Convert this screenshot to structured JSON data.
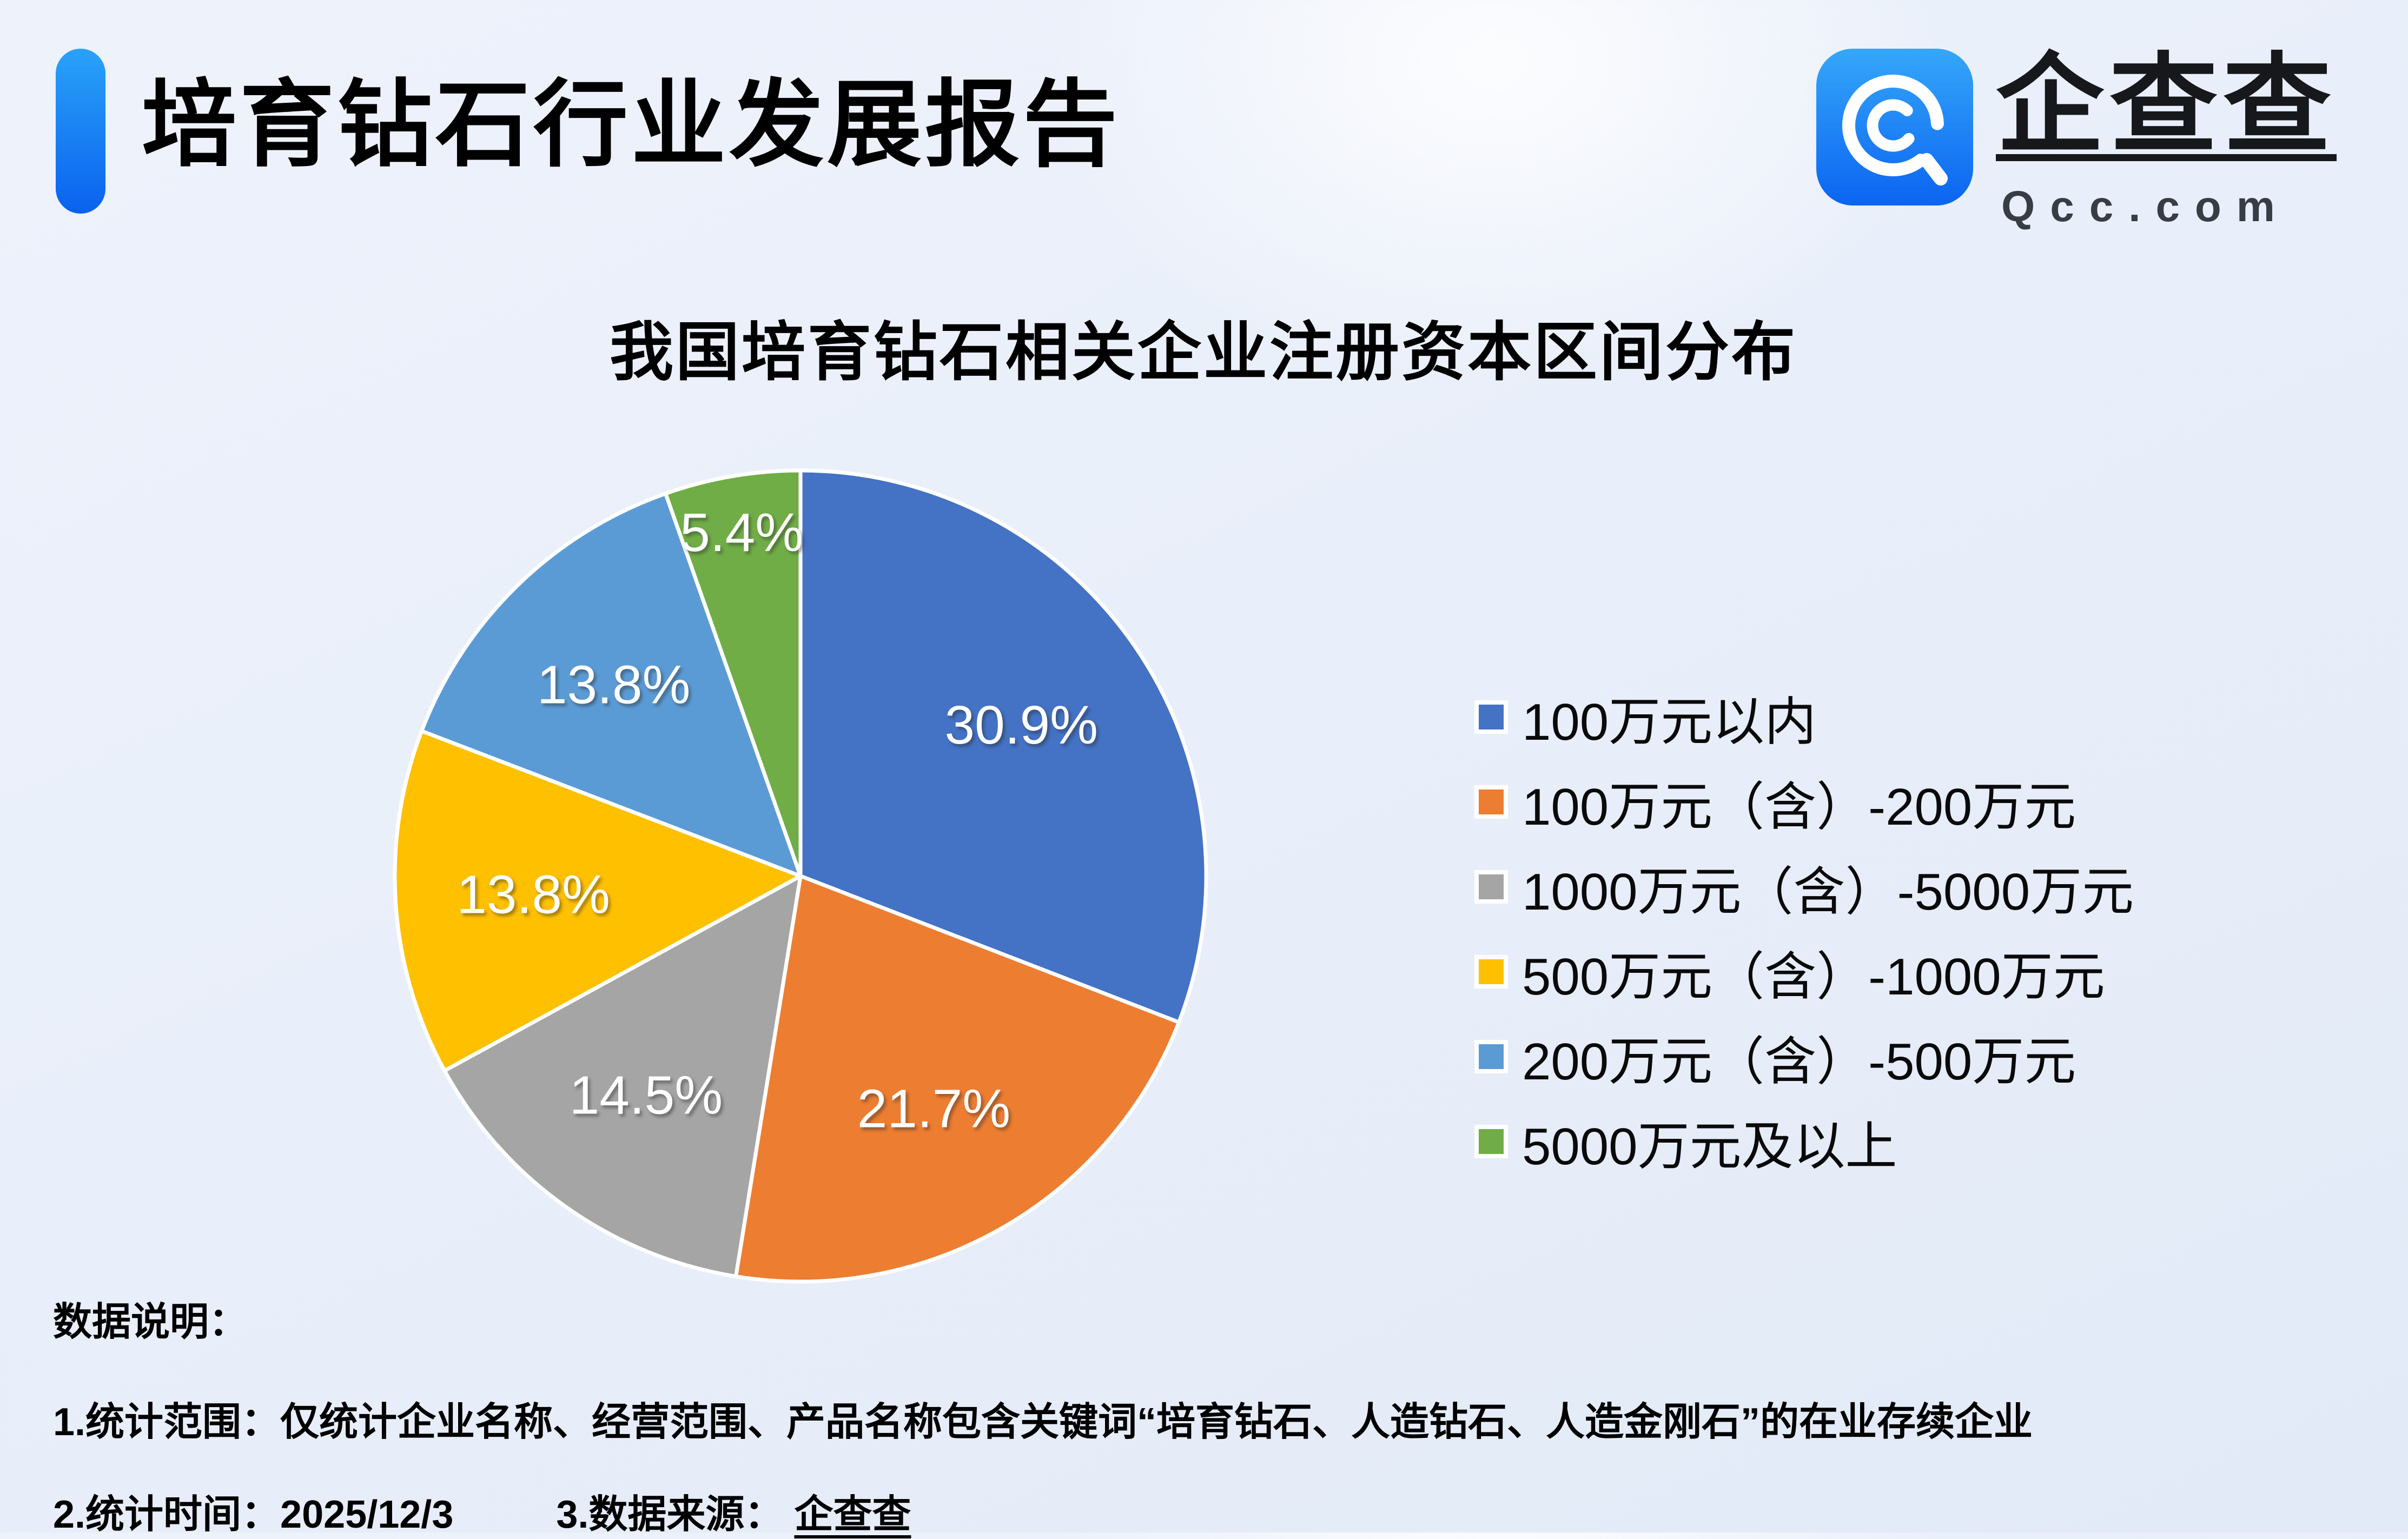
{
  "header": {
    "title": "培育钻石行业发展报告"
  },
  "logo": {
    "brand": "企查查",
    "domain": "Qcc.com",
    "icon": "qcc-logo-icon",
    "icon_gradient_top": "#35a7f9",
    "icon_gradient_bottom": "#0b64f1"
  },
  "chart_data": {
    "type": "pie",
    "title": "我国培育钻石相关企业注册资本区间分布",
    "direction": "clockwise",
    "start_angle_deg": 0,
    "legend_position": "right",
    "data_labels": "percent",
    "slices": [
      {
        "label": "100万元以内",
        "value": 30.9,
        "display": "30.9%",
        "color": "#4472C4"
      },
      {
        "label": "100万元（含）-200万元",
        "value": 21.7,
        "display": "21.7%",
        "color": "#ED7D31"
      },
      {
        "label": "1000万元（含）-5000万元",
        "value": 14.5,
        "display": "14.5%",
        "color": "#A5A5A5"
      },
      {
        "label": "500万元（含）-1000万元",
        "value": 13.8,
        "display": "13.8%",
        "color": "#FFC000"
      },
      {
        "label": "200万元（含）-500万元",
        "value": 13.8,
        "display": "13.8%",
        "color": "#5B9BD5"
      },
      {
        "label": "5000万元及以上",
        "value": 5.4,
        "display": "5.4%",
        "color": "#70AD47"
      }
    ]
  },
  "notes": {
    "heading": "数据说明：",
    "line1": "1.统计范围：仅统计企业名称、经营范围、产品名称包含关键词“培育钻石、人造钻石、人造金刚石”的在业存续企业",
    "line2_time": "2.统计时间：2025/12/3",
    "line2_source_label": "3.数据来源：",
    "line2_source_name": "企查查"
  }
}
